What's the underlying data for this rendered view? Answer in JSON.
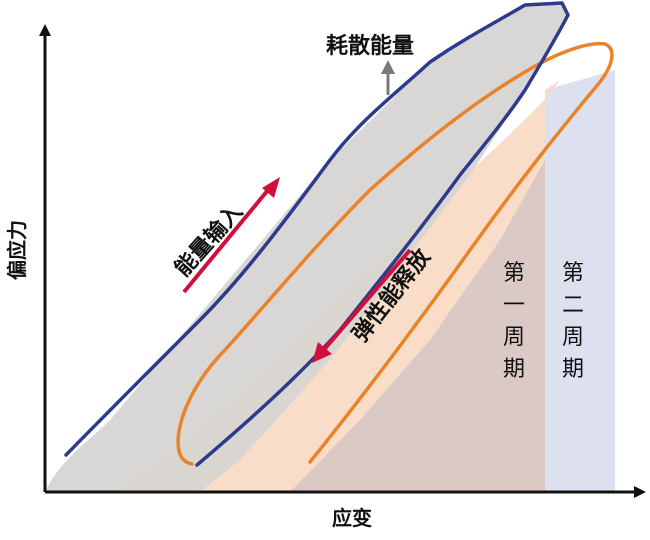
{
  "axes": {
    "y_label": "偏应力",
    "x_label": "应变"
  },
  "annotations": {
    "dissipated_energy": "耗散能量",
    "energy_input": "能量输入",
    "elastic_release": "弹性能释放"
  },
  "periods": {
    "first": [
      "第",
      "一",
      "周",
      "期"
    ],
    "second": [
      "第",
      "二",
      "周",
      "期"
    ]
  },
  "colors": {
    "cycle1_loop": "#2e3a8c",
    "cycle2_loop": "#e8832a",
    "dissipated_fill": "#d7d5d3",
    "elastic_fill": "#f8d9c3",
    "period1_fill": "#d5c6c4",
    "period2_fill": "#dde1ef",
    "arrow_red": "#d0103a",
    "arrow_gray": "#7a7a7a",
    "axis": "#111111"
  }
}
